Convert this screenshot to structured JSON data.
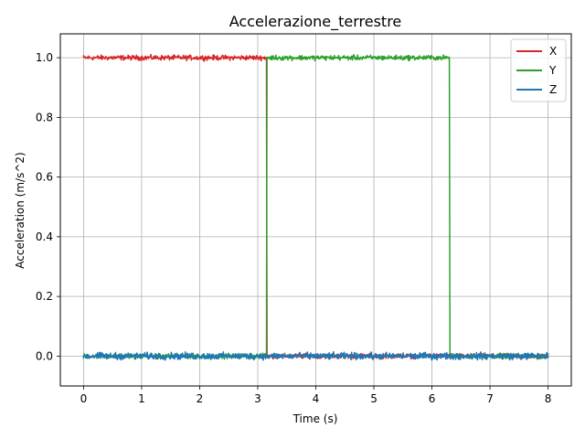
{
  "chart_data": {
    "type": "line",
    "title": "Accelerazione_terrestre",
    "xlabel": "Time (s)",
    "ylabel": "Acceleration (m/s^2)",
    "xlim": [
      -0.4,
      8.4
    ],
    "ylim": [
      -0.1,
      1.08
    ],
    "xticks": [
      0,
      1,
      2,
      3,
      4,
      5,
      6,
      7,
      8
    ],
    "xtick_labels": [
      "0",
      "1",
      "2",
      "3",
      "4",
      "5",
      "6",
      "7",
      "8"
    ],
    "yticks": [
      0.0,
      0.2,
      0.4,
      0.6,
      0.8,
      1.0
    ],
    "ytick_labels": [
      "0.0",
      "0.2",
      "0.4",
      "0.6",
      "0.8",
      "1.0"
    ],
    "grid": true,
    "legend_position": "top-right",
    "series": [
      {
        "name": "X",
        "color": "#d62728",
        "x": [
          0.0,
          3.15,
          3.16,
          8.0
        ],
        "y": [
          1.0,
          1.0,
          0.0,
          0.0
        ]
      },
      {
        "name": "Y",
        "color": "#2ca02c",
        "x": [
          0.0,
          3.15,
          3.16,
          6.3,
          6.31,
          8.0
        ],
        "y": [
          0.0,
          0.0,
          1.0,
          1.0,
          0.0,
          0.0
        ]
      },
      {
        "name": "Z",
        "color": "#1f77b4",
        "x": [
          0.0,
          8.0
        ],
        "y": [
          0.0,
          0.0
        ]
      }
    ],
    "noise_amplitude": 0.012
  }
}
